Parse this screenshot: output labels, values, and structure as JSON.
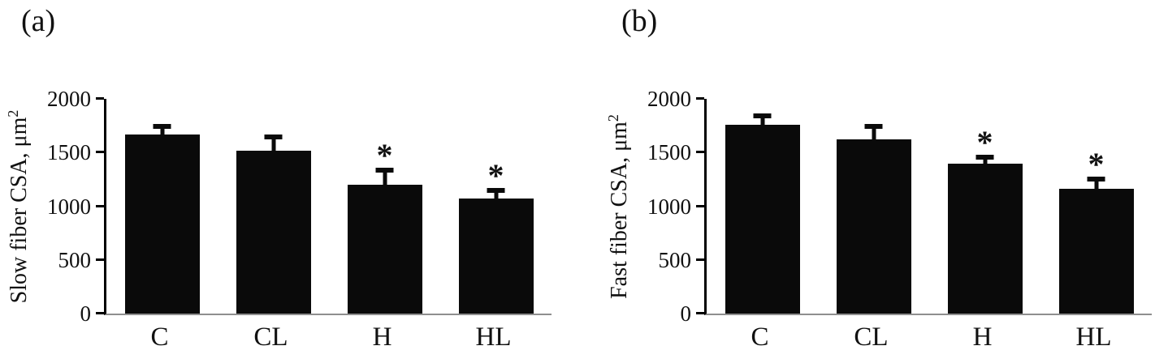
{
  "accent_colors": {
    "bar_fill": "#0a0a0a",
    "axis_line": "#000000",
    "baseline": "#8f8f8f",
    "background": "#ffffff"
  },
  "chart_data": [
    {
      "type": "bar",
      "panel_label": "(a)",
      "ylabel": "Slow fiber CSA, μm",
      "ylabel_sup": "2",
      "xlabel": "",
      "categories": [
        "C",
        "CL",
        "H",
        "HL"
      ],
      "values": [
        1670,
        1520,
        1200,
        1070
      ],
      "errors": [
        90,
        140,
        150,
        90
      ],
      "significance": [
        "",
        "",
        "*",
        "*"
      ],
      "yticks": [
        0,
        500,
        1000,
        1500,
        2000
      ],
      "ylim": [
        0,
        2000
      ],
      "grid": false,
      "legend": "none"
    },
    {
      "type": "bar",
      "panel_label": "(b)",
      "ylabel": "Fast fiber CSA, μm",
      "ylabel_sup": "2",
      "xlabel": "",
      "categories": [
        "C",
        "CL",
        "H",
        "HL"
      ],
      "values": [
        1760,
        1620,
        1400,
        1160
      ],
      "errors": [
        100,
        140,
        70,
        110
      ],
      "significance": [
        "",
        "",
        "*",
        "*"
      ],
      "yticks": [
        0,
        500,
        1000,
        1500,
        2000
      ],
      "ylim": [
        0,
        2000
      ],
      "grid": false,
      "legend": "none"
    }
  ]
}
